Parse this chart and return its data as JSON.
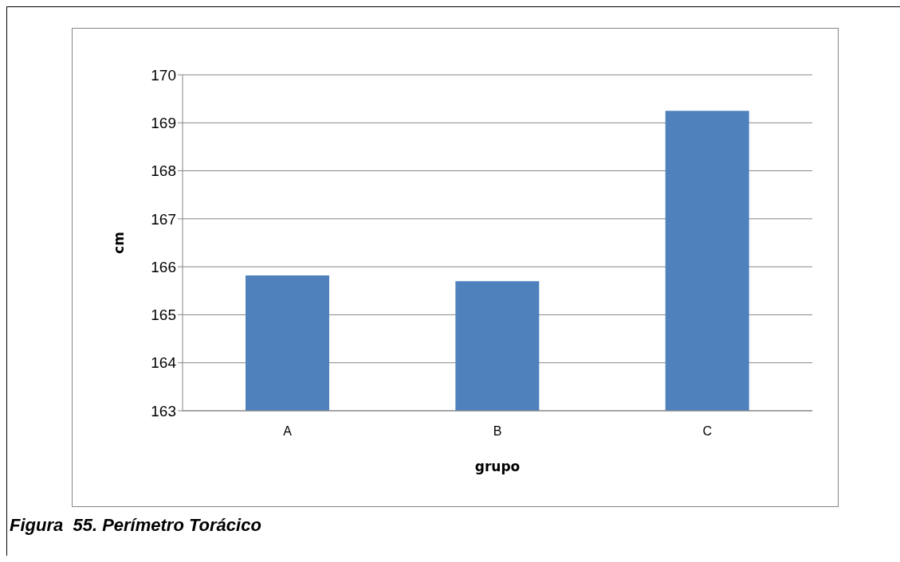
{
  "chart_data": {
    "type": "bar",
    "title": "Figura  55. Perímetro Torácico",
    "xlabel": "grupo",
    "ylabel": "cm",
    "categories": [
      "A",
      "B",
      "C"
    ],
    "values": [
      165.82,
      165.7,
      169.25
    ],
    "color": "#4f81bd",
    "ylim": [
      163,
      170
    ],
    "yticks": [
      163,
      164,
      165,
      166,
      167,
      168,
      169,
      170
    ],
    "grid": "y"
  }
}
